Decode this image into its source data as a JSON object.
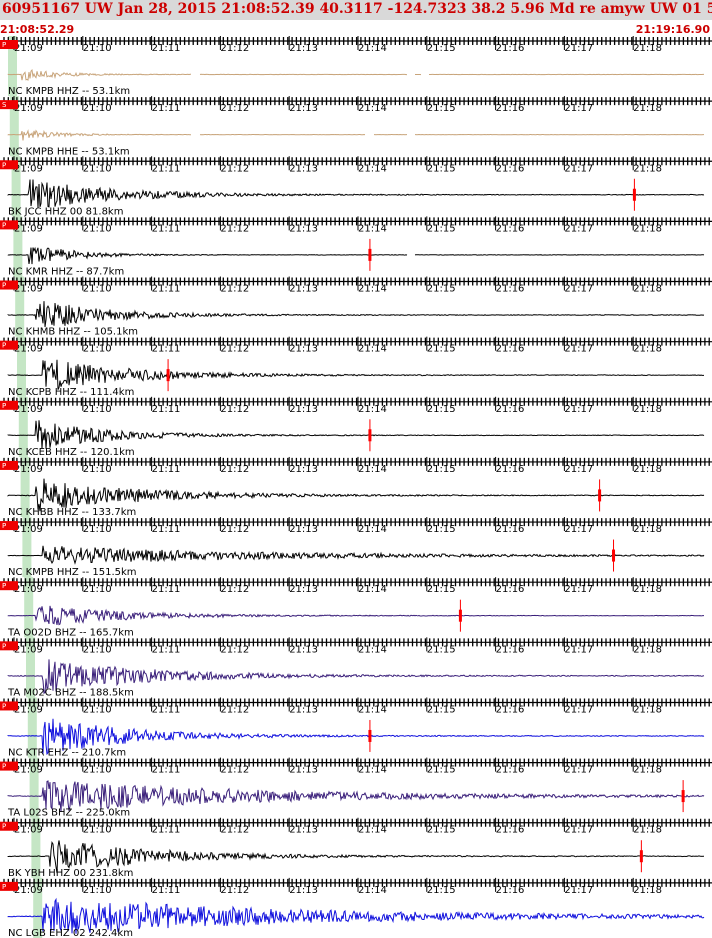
{
  "header": {
    "title": "60951167 UW Jan 28, 2015 21:08:52.39   40.3117 -124.7323 38.2 5.96 Md re amyw UW 01   5"
  },
  "time_range": {
    "start": "21:08:52.29",
    "end": "21:19:16.90"
  },
  "time_ticks": [
    "21:09",
    "21:10",
    "21:11",
    "21:12",
    "21:13",
    "21:14",
    "21:15",
    "21:16",
    "21:17",
    "21:18"
  ],
  "colors": {
    "grid": "#000000",
    "pick": "#ff0000",
    "arrival_band": "#b6e0b6",
    "header_bg": "#d9d9d9",
    "header_text": "#cc0000"
  },
  "traces": [
    {
      "label": "NC KMPB HHZ -- 53.1km",
      "badge": "P",
      "color": "#c8a47a",
      "amp": 0.35,
      "onset": 0.02,
      "decay": 0.05,
      "gaps": [
        0.27,
        0.58,
        0.6
      ],
      "pick": null
    },
    {
      "label": "NC KMPB HHE -- 53.1km",
      "badge": "S",
      "color": "#c8a47a",
      "amp": 0.3,
      "onset": 0.02,
      "decay": 0.05,
      "gaps": [
        0.27,
        0.52,
        0.58
      ],
      "pick": null
    },
    {
      "label": "BK JCC HHZ 00 81.8km",
      "badge": "P",
      "color": "#000000",
      "amp": 0.8,
      "onset": 0.03,
      "decay": 0.12,
      "gaps": [],
      "pick": 0.9
    },
    {
      "label": "NC KMR HHZ -- 87.7km",
      "badge": "P",
      "color": "#000000",
      "amp": 0.6,
      "onset": 0.03,
      "decay": 0.06,
      "gaps": [
        0.58
      ],
      "pick": 0.52
    },
    {
      "label": "NC KHMB HHZ -- 105.1km",
      "badge": "P",
      "color": "#000000",
      "amp": 0.8,
      "onset": 0.04,
      "decay": 0.1,
      "gaps": [],
      "pick": null
    },
    {
      "label": "NC KCPB HHZ -- 111.4km",
      "badge": "P",
      "color": "#000000",
      "amp": 0.9,
      "onset": 0.05,
      "decay": 0.12,
      "gaps": [],
      "pick": 0.23
    },
    {
      "label": "NC KCEB HHZ -- 120.1km",
      "badge": "P",
      "color": "#000000",
      "amp": 0.8,
      "onset": 0.04,
      "decay": 0.1,
      "gaps": [],
      "pick": 0.52
    },
    {
      "label": "NC KHBB HHZ -- 133.7km",
      "badge": "P",
      "color": "#000000",
      "amp": 0.9,
      "onset": 0.04,
      "decay": 0.14,
      "gaps": [],
      "pick": 0.85
    },
    {
      "label": "NC KMPB HHZ -- 151.5km",
      "badge": "P",
      "color": "#000000",
      "amp": 0.5,
      "onset": 0.05,
      "decay": 0.3,
      "gaps": [],
      "pick": 0.87
    },
    {
      "label": "TA O02D BHZ -- 165.7km",
      "badge": "P",
      "color": "#3a1f7a",
      "amp": 0.6,
      "onset": 0.04,
      "decay": 0.12,
      "gaps": [],
      "pick": 0.65
    },
    {
      "label": "TA M02C BHZ -- 188.5km",
      "badge": "P",
      "color": "#3a1f7a",
      "amp": 0.9,
      "onset": 0.05,
      "decay": 0.15,
      "gaps": [],
      "pick": null
    },
    {
      "label": "NC KTR EHZ -- 210.7km",
      "badge": "P",
      "color": "#1010dd",
      "amp": 1.0,
      "onset": 0.05,
      "decay": 0.12,
      "gaps": [],
      "pick": 0.52
    },
    {
      "label": "TA L02S BHZ -- 225.0km",
      "badge": "P",
      "color": "#3a1f7a",
      "amp": 0.85,
      "onset": 0.05,
      "decay": 0.3,
      "gaps": [],
      "pick": 0.97
    },
    {
      "label": "BK YBH HHZ 00 231.8km",
      "badge": "P",
      "color": "#000000",
      "amp": 0.95,
      "onset": 0.06,
      "decay": 0.14,
      "gaps": [],
      "pick": 0.91
    },
    {
      "label": "NC LGB EHZ 02 242.4km",
      "badge": "P",
      "color": "#1010dd",
      "amp": 1.0,
      "onset": 0.05,
      "decay": 0.35,
      "gaps": [],
      "pick": null
    }
  ]
}
